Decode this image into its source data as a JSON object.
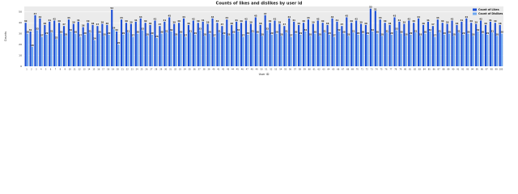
{
  "chart_data": {
    "type": "grouped-bar",
    "title": "Counts of likes and dislikes by user id",
    "x_label": "User ID",
    "y_label": "Counts",
    "categories": [
      "1",
      "2",
      "3",
      "4",
      "5",
      "6",
      "7",
      "8",
      "9",
      "10",
      "11",
      "12",
      "13",
      "14",
      "15",
      "16",
      "17",
      "18",
      "19",
      "20",
      "21",
      "22",
      "23",
      "24",
      "25",
      "26",
      "27",
      "28",
      "29",
      "30",
      "31",
      "32",
      "33",
      "34",
      "35",
      "36",
      "37",
      "38",
      "39",
      "40",
      "41",
      "42",
      "43",
      "44",
      "45",
      "46",
      "47",
      "48",
      "49",
      "50",
      "51",
      "52",
      "53",
      "54",
      "55",
      "56",
      "57",
      "58",
      "59",
      "60",
      "61",
      "62",
      "63",
      "64",
      "65",
      "66",
      "67",
      "68",
      "69",
      "70",
      "71",
      "72",
      "73",
      "74",
      "75",
      "76",
      "77",
      "78",
      "79",
      "80",
      "81",
      "82",
      "83",
      "84",
      "85",
      "86",
      "87",
      "88",
      "89",
      "90",
      "91",
      "92",
      "93",
      "94",
      "95",
      "96",
      "97",
      "98",
      "99",
      "100"
    ],
    "series": [
      {
        "name": "Count of Likes",
        "color": "#1d4fd6",
        "values": [
          40,
          32,
          47,
          44,
          38,
          41,
          42,
          40,
          37,
          43,
          39,
          41,
          36,
          40,
          38,
          37,
          39,
          38,
          52,
          32,
          43,
          40,
          39,
          41,
          44,
          40,
          38,
          42,
          37,
          41,
          45,
          39,
          40,
          44,
          38,
          42,
          40,
          41,
          39,
          44,
          40,
          37,
          43,
          38,
          41,
          40,
          42,
          39,
          45,
          38,
          47,
          40,
          42,
          39,
          37,
          44,
          41,
          38,
          40,
          43,
          39,
          42,
          40,
          38,
          44,
          41,
          37,
          45,
          40,
          42,
          39,
          38,
          53,
          51,
          43,
          40,
          38,
          45,
          41,
          39,
          42,
          40,
          44,
          38,
          41,
          37,
          43,
          40,
          39,
          42,
          38,
          41,
          44,
          40,
          39,
          42,
          38,
          41,
          40,
          38
        ]
      },
      {
        "name": "Count of Dislikes",
        "color": "#6fa8f2",
        "values": [
          30,
          18,
          33,
          27,
          29,
          31,
          25,
          30,
          28,
          32,
          30,
          27,
          29,
          31,
          24,
          30,
          28,
          29,
          34,
          20,
          29,
          31,
          27,
          30,
          33,
          28,
          29,
          26,
          30,
          31,
          32,
          28,
          30,
          27,
          31,
          29,
          33,
          28,
          30,
          27,
          31,
          29,
          28,
          30,
          32,
          27,
          29,
          31,
          30,
          28,
          33,
          29,
          30,
          28,
          31,
          27,
          30,
          29,
          32,
          28,
          30,
          28,
          31,
          29,
          27,
          32,
          30,
          28,
          31,
          29,
          30,
          29,
          32,
          30,
          28,
          31,
          29,
          33,
          30,
          28,
          29,
          31,
          28,
          30,
          32,
          27,
          31,
          29,
          30,
          28,
          31,
          29,
          30,
          28,
          32,
          30,
          29,
          31,
          28,
          30
        ]
      }
    ],
    "ylim": [
      0,
      55
    ],
    "yticks": [
      0,
      10,
      20,
      30,
      40,
      50
    ],
    "grid": true,
    "legend": "upper right"
  }
}
